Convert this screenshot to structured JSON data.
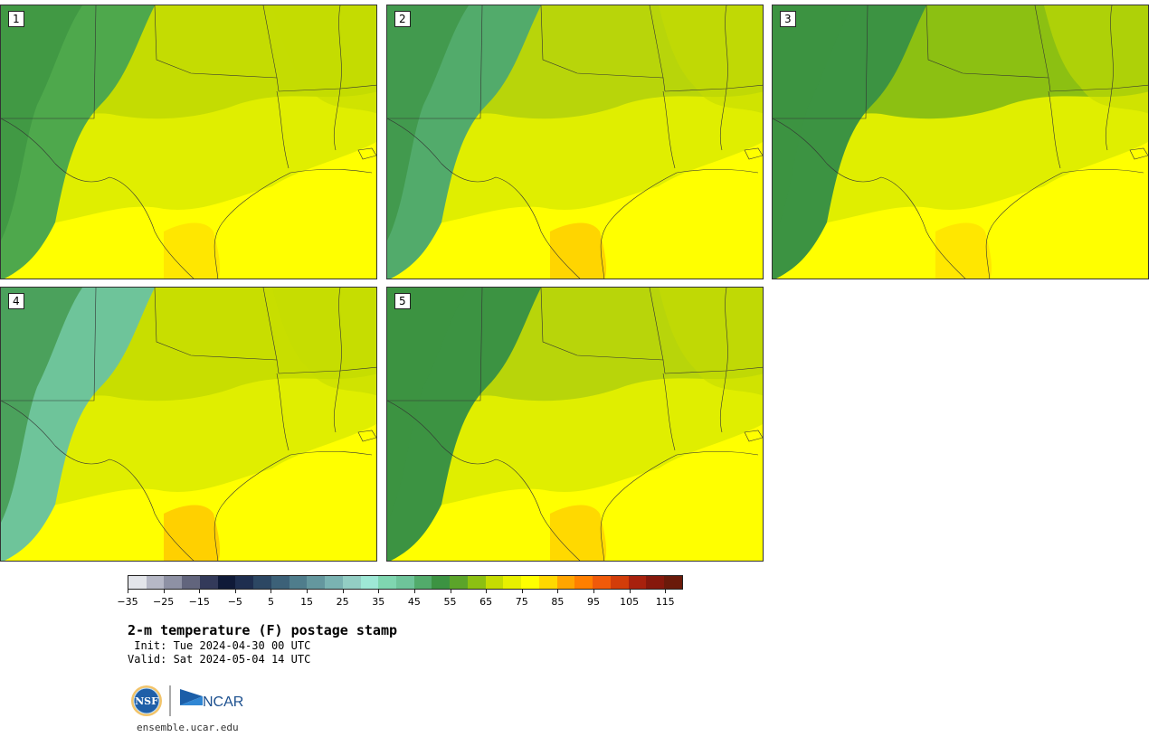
{
  "panels": [
    {
      "label": "1"
    },
    {
      "label": "2"
    },
    {
      "label": "3"
    },
    {
      "label": "4"
    },
    {
      "label": "5"
    }
  ],
  "colorbar": {
    "colors": [
      "#e3e5ea",
      "#b6b8c6",
      "#8e91a4",
      "#62657d",
      "#333a5a",
      "#0f1a38",
      "#1e2e4f",
      "#2c4763",
      "#3c6178",
      "#4f7d8c",
      "#64979e",
      "#7ab3b2",
      "#93cec4",
      "#9ee8d6",
      "#7fd6b0",
      "#6ec49a",
      "#52ab6b",
      "#3c9342",
      "#5ba42a",
      "#8cc012",
      "#c5dc02",
      "#e8f000",
      "#ffff00",
      "#ffd800",
      "#ffa500",
      "#ff7f00",
      "#f05a0a",
      "#d23d0a",
      "#a8210d",
      "#86180c",
      "#6a1a0a"
    ],
    "tick_labels": [
      "−35",
      "−25",
      "−15",
      "−5",
      "5",
      "15",
      "25",
      "35",
      "45",
      "55",
      "65",
      "75",
      "85",
      "95",
      "105",
      "115"
    ]
  },
  "title": "2-m temperature (F) postage stamp",
  "init_line": " Init: Tue 2024-04-30 00 UTC",
  "valid_line": "Valid: Sat 2024-05-04 14 UTC",
  "logos": {
    "nsf": "NSF",
    "ncar": "NCAR"
  },
  "url": "ensemble.ucar.edu"
}
